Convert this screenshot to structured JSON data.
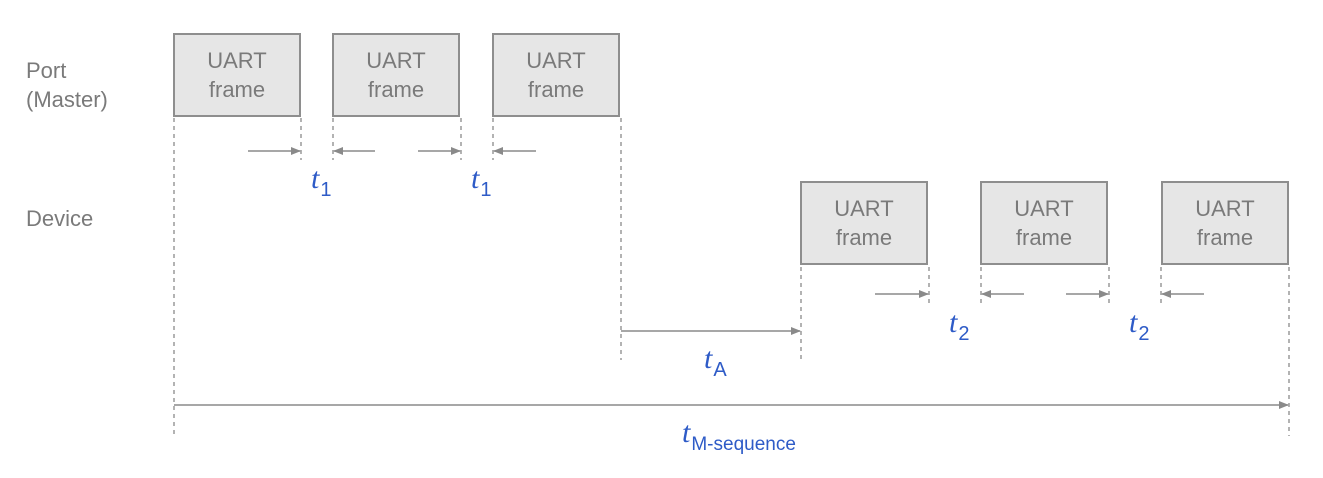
{
  "rows": {
    "port_line1": "Port",
    "port_line2": "(Master)",
    "device": "Device"
  },
  "frames": {
    "line1": "UART",
    "line2": "frame"
  },
  "timings": {
    "t1": {
      "var": "t",
      "sub": "1"
    },
    "t2": {
      "var": "t",
      "sub": "2"
    },
    "tA": {
      "var": "t",
      "sub": "A"
    },
    "tM": {
      "var": "t",
      "sub": "M-sequence"
    }
  },
  "colors": {
    "frame_fill": "#e6e6e6",
    "frame_border": "#8e8e8e",
    "line": "#8a8a8a",
    "label_text": "#7a7a7a",
    "timing_text": "#2e5bc7"
  }
}
